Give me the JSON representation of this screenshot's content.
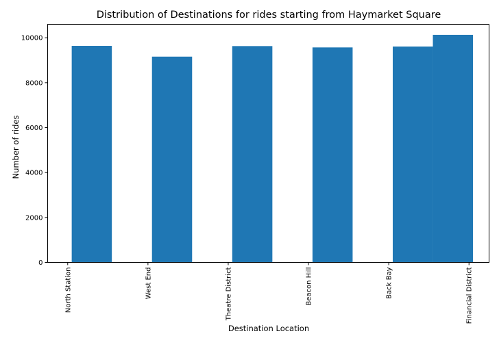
{
  "chart_data": {
    "type": "bar",
    "title": "Distribution of Destinations for rides starting from Haymarket Square",
    "xlabel": "Destination Location",
    "ylabel": "Number of rides",
    "ylim": [
      0,
      10600
    ],
    "yticks": [
      0,
      2000,
      4000,
      6000,
      8000,
      10000
    ],
    "bar_color": "#1f77b4",
    "grid": false,
    "categories": [
      "North Station",
      "West End",
      "Theatre District",
      "Beacon Hill",
      "Back Bay",
      "Financial District"
    ],
    "bars": [
      {
        "x_start": 0.05,
        "x_end": 0.55,
        "value": 9640
      },
      {
        "x_start": 1.05,
        "x_end": 1.55,
        "value": 9160
      },
      {
        "x_start": 2.05,
        "x_end": 2.55,
        "value": 9630
      },
      {
        "x_start": 3.05,
        "x_end": 3.55,
        "value": 9570
      },
      {
        "x_start": 4.05,
        "x_end": 4.55,
        "value": 9610
      },
      {
        "x_start": 4.55,
        "x_end": 5.05,
        "value": 10130
      }
    ],
    "xlim": [
      -0.25,
      5.25
    ]
  }
}
